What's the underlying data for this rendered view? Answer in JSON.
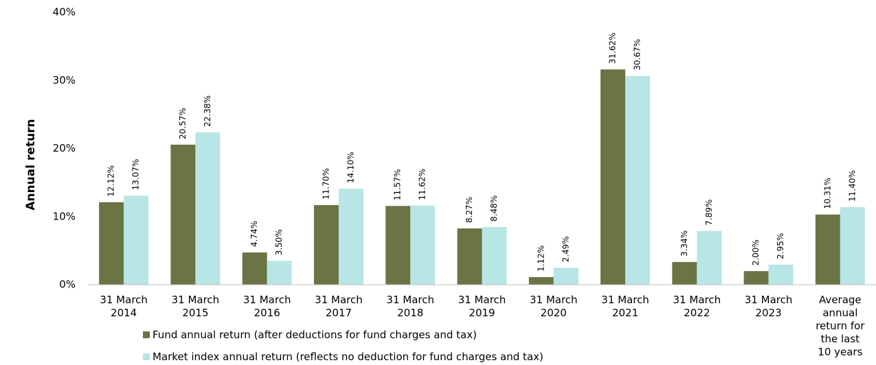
{
  "chart_data": {
    "type": "bar",
    "y_label": "Annual return",
    "categories": [
      "31 March 2014",
      "31 March 2015",
      "31 March 2016",
      "31 March 2017",
      "31 March 2018",
      "31 March 2019",
      "31 March 2020",
      "31 March 2021",
      "31 March 2022",
      "31 March 2023",
      "Average annual return for the last 10 years"
    ],
    "series": [
      {
        "name": "Fund annual return (after deductions for fund charges and tax)",
        "color": "#6b7444",
        "values": [
          12.12,
          20.57,
          4.74,
          11.7,
          11.57,
          8.27,
          1.12,
          31.62,
          3.34,
          2.0,
          10.31
        ],
        "value_labels": [
          "12.12%",
          "20.57%",
          "4.74%",
          "11.70%",
          "11.57%",
          "8.27%",
          "1.12%",
          "31.62%",
          "3.34%",
          "2.00%",
          "10.31%"
        ]
      },
      {
        "name": "Market index annual return (reflects no deduction for fund charges and tax)",
        "color": "#b8e5e5",
        "values": [
          13.07,
          22.38,
          3.5,
          14.1,
          11.62,
          8.48,
          2.49,
          30.67,
          7.89,
          2.95,
          11.4
        ],
        "value_labels": [
          "13.07%",
          "22.38%",
          "3.50%",
          "14.10%",
          "11.62%",
          "8.48%",
          "2.49%",
          "30.67%",
          "7.89%",
          "2.95%",
          "11.40%"
        ]
      }
    ],
    "ylim": [
      0,
      40
    ],
    "yticks": [
      {
        "value": 0,
        "label": "0%"
      },
      {
        "value": 10,
        "label": "10%"
      },
      {
        "value": 20,
        "label": "20%"
      },
      {
        "value": 30,
        "label": "30%"
      },
      {
        "value": 40,
        "label": "40%"
      }
    ],
    "grid": false
  }
}
